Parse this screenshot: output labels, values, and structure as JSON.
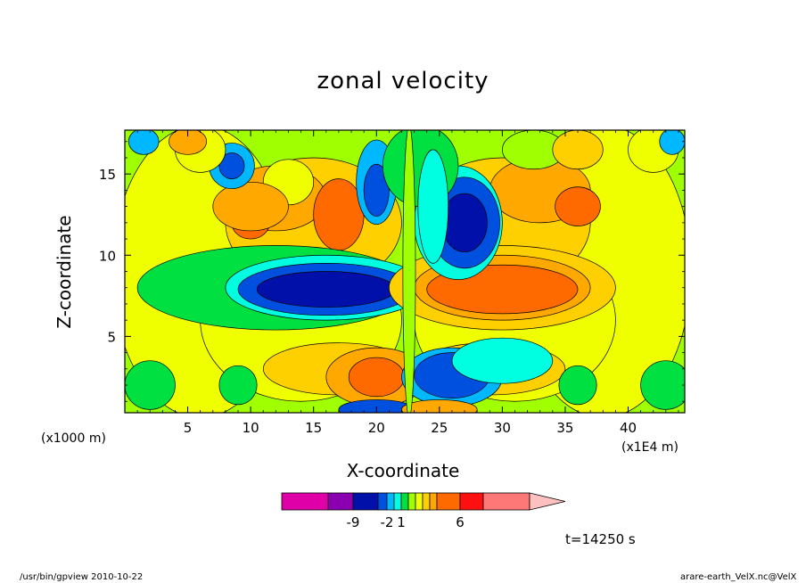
{
  "chart_data": {
    "type": "heatmap",
    "title": "zonal velocity",
    "xlabel": "X-coordinate",
    "ylabel": "Z-coordinate",
    "x_unit": "(x1000 m)",
    "x_unit_right": "(x1E4 m)",
    "x_ticks": [
      5,
      10,
      15,
      20,
      25,
      30,
      35,
      40
    ],
    "y_ticks": [
      5,
      10,
      15
    ],
    "xlim": [
      0,
      44.5
    ],
    "ylim": [
      0.3,
      17.7
    ],
    "colorbar": {
      "tick_labels": [
        "-9",
        "-2",
        "1",
        "6"
      ],
      "colors": [
        "#e000a8",
        "#8a00b0",
        "#0010a8",
        "#0050e0",
        "#00b8ff",
        "#00ffe0",
        "#00e040",
        "#a0ff00",
        "#f0ff00",
        "#ffd000",
        "#ffa800",
        "#ff6a00",
        "#ff1010",
        "#ff7878",
        "#ffc0c0"
      ]
    },
    "time_label": "t=14250 s"
  },
  "footer": {
    "left": "/usr/bin/gpview   2010-10-22",
    "right": "arare-earth_VelX.nc@VelX"
  }
}
